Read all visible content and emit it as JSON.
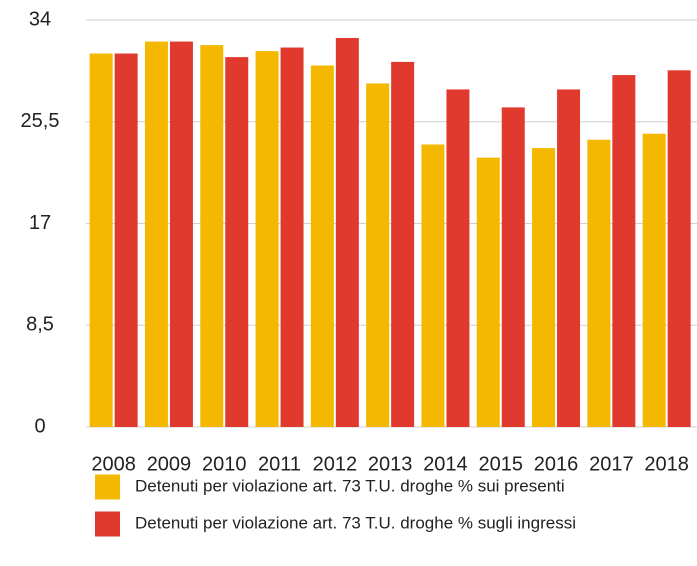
{
  "chart_data": {
    "type": "bar",
    "categories": [
      "2008",
      "2009",
      "2010",
      "2011",
      "2012",
      "2013",
      "2014",
      "2015",
      "2016",
      "2017",
      "2018"
    ],
    "series": [
      {
        "name": "Detenuti per violazione art. 73 T.U. droghe % sui presenti",
        "color": "#f5b800",
        "values": [
          31.2,
          32.2,
          31.9,
          31.4,
          30.2,
          28.7,
          23.6,
          22.5,
          23.3,
          24.0,
          24.5
        ]
      },
      {
        "name": "Detenuti per violazione art. 73 T.U. droghe % sugli ingressi",
        "color": "#e03a2f",
        "values": [
          31.2,
          32.2,
          30.9,
          31.7,
          32.5,
          30.5,
          28.2,
          26.7,
          28.2,
          29.4,
          29.8
        ]
      }
    ],
    "ylim": [
      0,
      34
    ],
    "yticks": [
      0,
      {
        "value": 8.5,
        "label": "8,5"
      },
      17,
      {
        "value": 25.5,
        "label": "25,5"
      },
      34
    ],
    "grid": true
  }
}
